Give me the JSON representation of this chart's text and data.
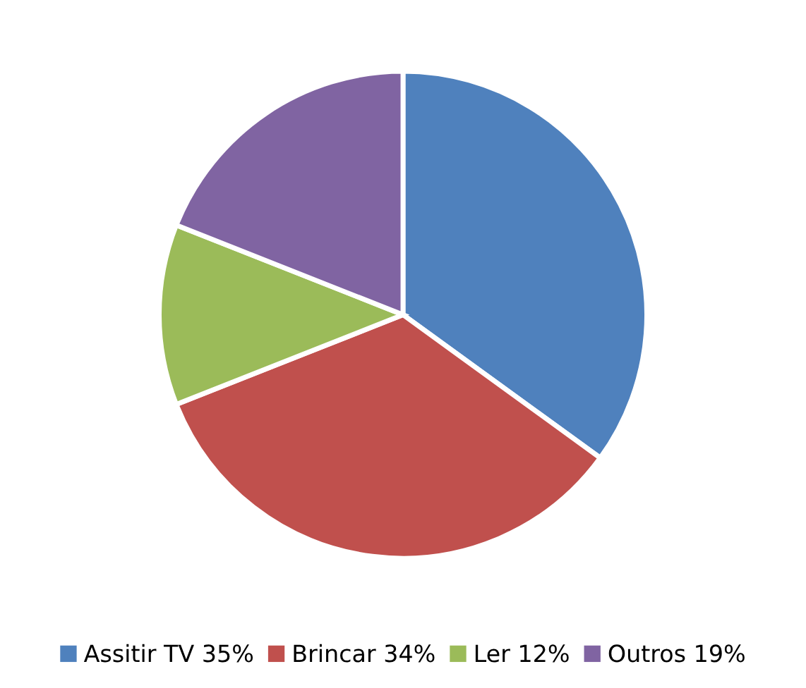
{
  "chart_data": {
    "type": "pie",
    "categories": [
      "Assitir TV 35%",
      "Brincar 34%",
      "Ler 12%",
      "Outros 19%"
    ],
    "values": [
      35,
      34,
      12,
      19
    ],
    "colors": [
      "#4f81bd",
      "#c0504d",
      "#9bbb59",
      "#8064a2"
    ],
    "legend": "bottom"
  }
}
